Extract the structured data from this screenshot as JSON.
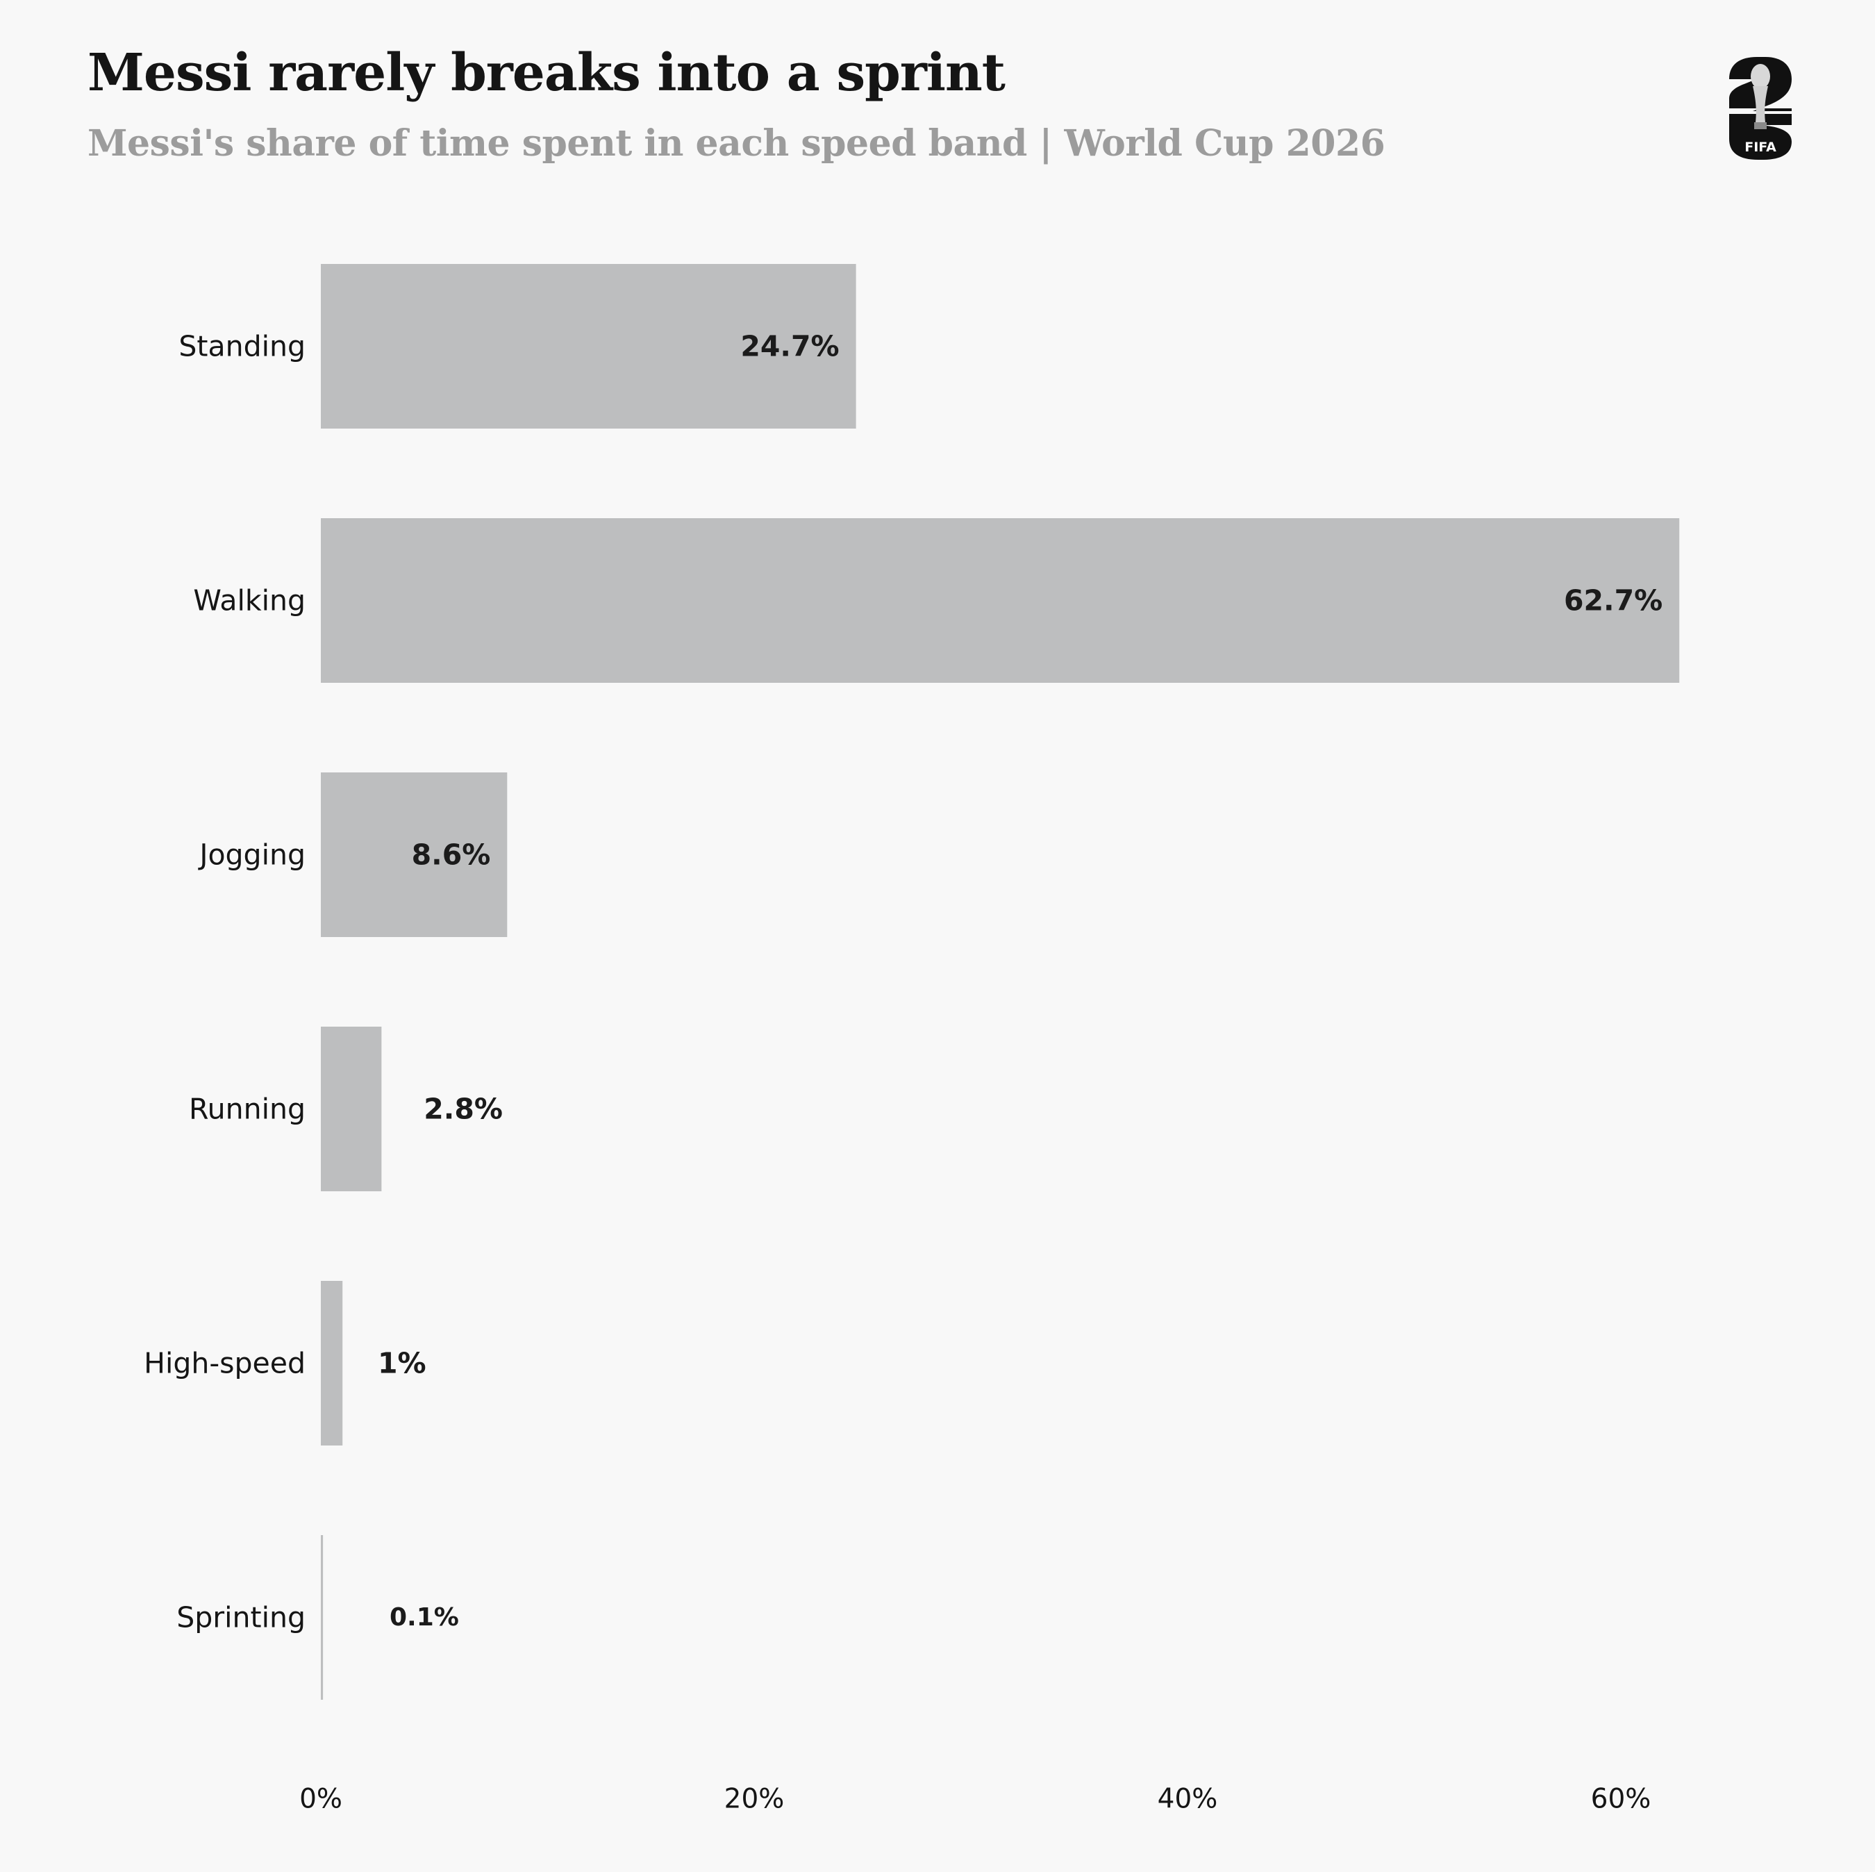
{
  "title": "Messi rarely breaks into a sprint",
  "subtitle": "Messi's share of time spent in each speed band | World Cup 2026",
  "logo": {
    "icon": "fifa-world-cup-2026-logo-icon",
    "text": "FIFA"
  },
  "colors": {
    "background": "#f8f8f8",
    "bar": "#bdbebf",
    "text": "#151515",
    "subtitle": "#9c9c9c"
  },
  "chart_data": {
    "type": "bar",
    "orientation": "horizontal",
    "categories": [
      "Standing",
      "Walking",
      "Jogging",
      "Running",
      "High-speed",
      "Sprinting"
    ],
    "values": [
      24.7,
      62.7,
      8.6,
      2.8,
      1,
      0.1
    ],
    "value_labels": [
      "24.7%",
      "62.7%",
      "8.6%",
      "2.8%",
      "1%",
      "0.1%"
    ],
    "xlim": [
      0,
      70
    ],
    "xticks": [
      0,
      20,
      40,
      60
    ],
    "xtick_labels": [
      "0%",
      "20%",
      "40%",
      "60%"
    ],
    "xlabel": "",
    "ylabel": "",
    "grid": false,
    "legend": "none"
  }
}
